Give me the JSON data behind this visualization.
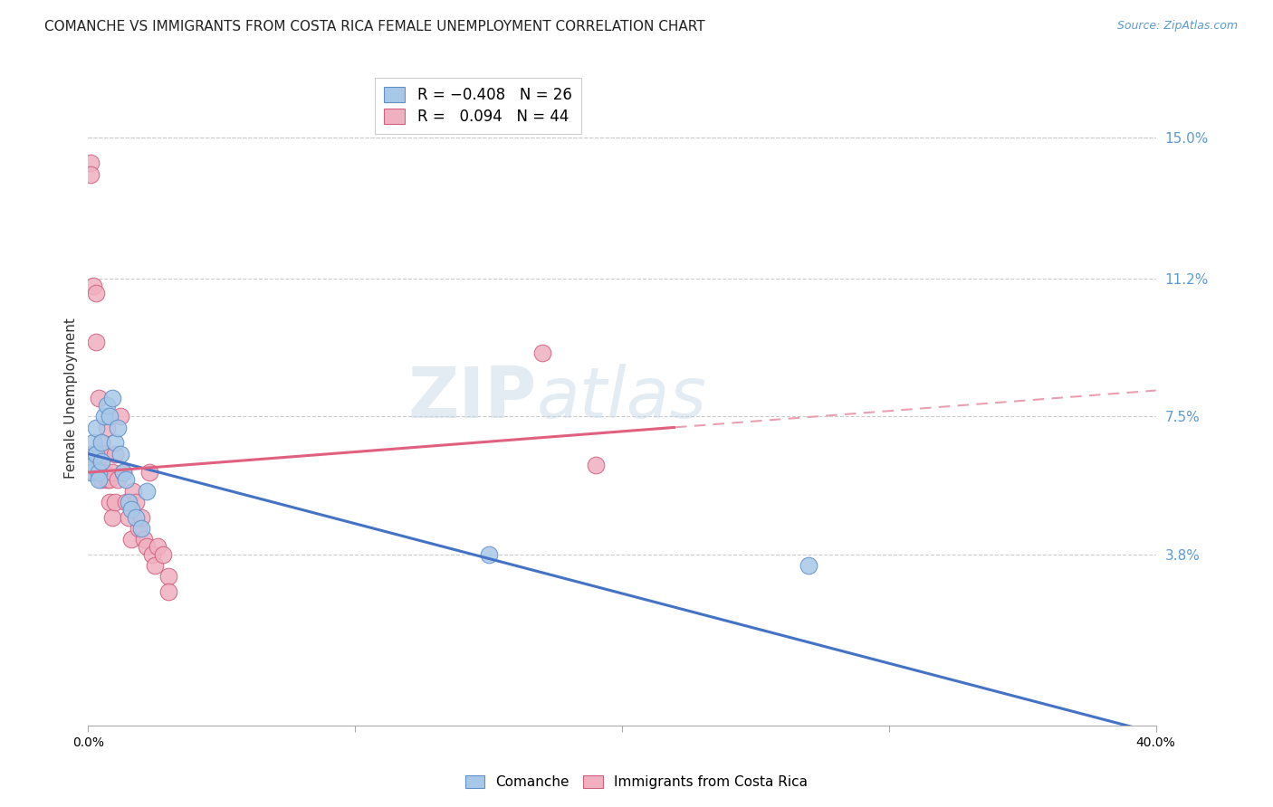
{
  "title": "COMANCHE VS IMMIGRANTS FROM COSTA RICA FEMALE UNEMPLOYMENT CORRELATION CHART",
  "source": "Source: ZipAtlas.com",
  "ylabel": "Female Unemployment",
  "y_tick_values": [
    0.038,
    0.075,
    0.112,
    0.15
  ],
  "xlim": [
    0.0,
    0.4
  ],
  "ylim": [
    -0.008,
    0.168
  ],
  "comanche_x": [
    0.001,
    0.001,
    0.002,
    0.002,
    0.003,
    0.003,
    0.004,
    0.004,
    0.005,
    0.005,
    0.006,
    0.007,
    0.008,
    0.009,
    0.01,
    0.011,
    0.012,
    0.013,
    0.014,
    0.015,
    0.016,
    0.018,
    0.02,
    0.022,
    0.15,
    0.27
  ],
  "comanche_y": [
    0.065,
    0.06,
    0.068,
    0.062,
    0.072,
    0.065,
    0.06,
    0.058,
    0.068,
    0.063,
    0.075,
    0.078,
    0.075,
    0.08,
    0.068,
    0.072,
    0.065,
    0.06,
    0.058,
    0.052,
    0.05,
    0.048,
    0.045,
    0.055,
    0.038,
    0.035
  ],
  "costa_rica_x": [
    0.001,
    0.001,
    0.002,
    0.002,
    0.002,
    0.003,
    0.003,
    0.003,
    0.004,
    0.004,
    0.005,
    0.005,
    0.005,
    0.006,
    0.006,
    0.007,
    0.007,
    0.008,
    0.008,
    0.009,
    0.009,
    0.01,
    0.01,
    0.011,
    0.012,
    0.013,
    0.014,
    0.015,
    0.016,
    0.017,
    0.018,
    0.019,
    0.02,
    0.021,
    0.022,
    0.023,
    0.024,
    0.025,
    0.026,
    0.028,
    0.03,
    0.03,
    0.17,
    0.19
  ],
  "costa_rica_y": [
    0.143,
    0.14,
    0.11,
    0.062,
    0.06,
    0.108,
    0.095,
    0.065,
    0.08,
    0.06,
    0.068,
    0.06,
    0.058,
    0.065,
    0.06,
    0.072,
    0.058,
    0.058,
    0.052,
    0.06,
    0.048,
    0.065,
    0.052,
    0.058,
    0.075,
    0.06,
    0.052,
    0.048,
    0.042,
    0.055,
    0.052,
    0.045,
    0.048,
    0.042,
    0.04,
    0.06,
    0.038,
    0.035,
    0.04,
    0.038,
    0.032,
    0.028,
    0.092,
    0.062
  ],
  "comanche_color": "#a8c8e8",
  "comanche_edge": "#6090c8",
  "costa_rica_color": "#f0b0c0",
  "costa_rica_edge": "#d06080",
  "trend_comanche_color": "#4472c4",
  "trend_costa_rica_solid_color": "#e06080",
  "trend_costa_rica_dash_color": "#e8a0b0",
  "background_color": "#ffffff",
  "grid_color": "#cccccc",
  "title_fontsize": 11,
  "axis_label_fontsize": 10,
  "tick_label_fontsize": 10,
  "right_tick_color": "#5b9bd5",
  "watermark_color": "#c8d8e8",
  "watermark_alpha": 0.5,
  "trend_blue_y0": 0.065,
  "trend_blue_y1": -0.01,
  "trend_pink_y0": 0.06,
  "trend_pink_y1": 0.082,
  "trend_pink_solid_x1": 0.22
}
